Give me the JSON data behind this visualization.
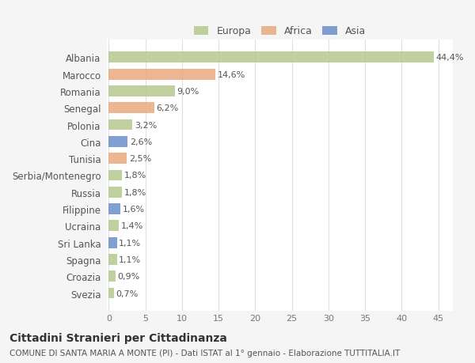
{
  "categories": [
    "Albania",
    "Marocco",
    "Romania",
    "Senegal",
    "Polonia",
    "Cina",
    "Tunisia",
    "Serbia/Montenegro",
    "Russia",
    "Filippine",
    "Ucraina",
    "Sri Lanka",
    "Spagna",
    "Croazia",
    "Svezia"
  ],
  "values": [
    44.4,
    14.6,
    9.0,
    6.2,
    3.2,
    2.6,
    2.5,
    1.8,
    1.8,
    1.6,
    1.4,
    1.1,
    1.1,
    0.9,
    0.7
  ],
  "labels": [
    "44,4%",
    "14,6%",
    "9,0%",
    "6,2%",
    "3,2%",
    "2,6%",
    "2,5%",
    "1,8%",
    "1,8%",
    "1,6%",
    "1,4%",
    "1,1%",
    "1,1%",
    "0,9%",
    "0,7%"
  ],
  "continents": [
    "Europa",
    "Africa",
    "Europa",
    "Africa",
    "Europa",
    "Asia",
    "Africa",
    "Europa",
    "Europa",
    "Asia",
    "Europa",
    "Asia",
    "Europa",
    "Europa",
    "Europa"
  ],
  "colors": {
    "Europa": "#b5c98e",
    "Africa": "#e8a97e",
    "Asia": "#6b8fc9"
  },
  "legend_labels": [
    "Europa",
    "Africa",
    "Asia"
  ],
  "title": "Cittadini Stranieri per Cittadinanza",
  "subtitle": "COMUNE DI SANTA MARIA A MONTE (PI) - Dati ISTAT al 1° gennaio - Elaborazione TUTTITALIA.IT",
  "xlabel_ticks": [
    0,
    5,
    10,
    15,
    20,
    25,
    30,
    35,
    40,
    45
  ],
  "xlim": [
    -0.5,
    47
  ],
  "background_color": "#f5f5f5",
  "bar_background": "#ffffff",
  "grid_color": "#e0e0e0"
}
